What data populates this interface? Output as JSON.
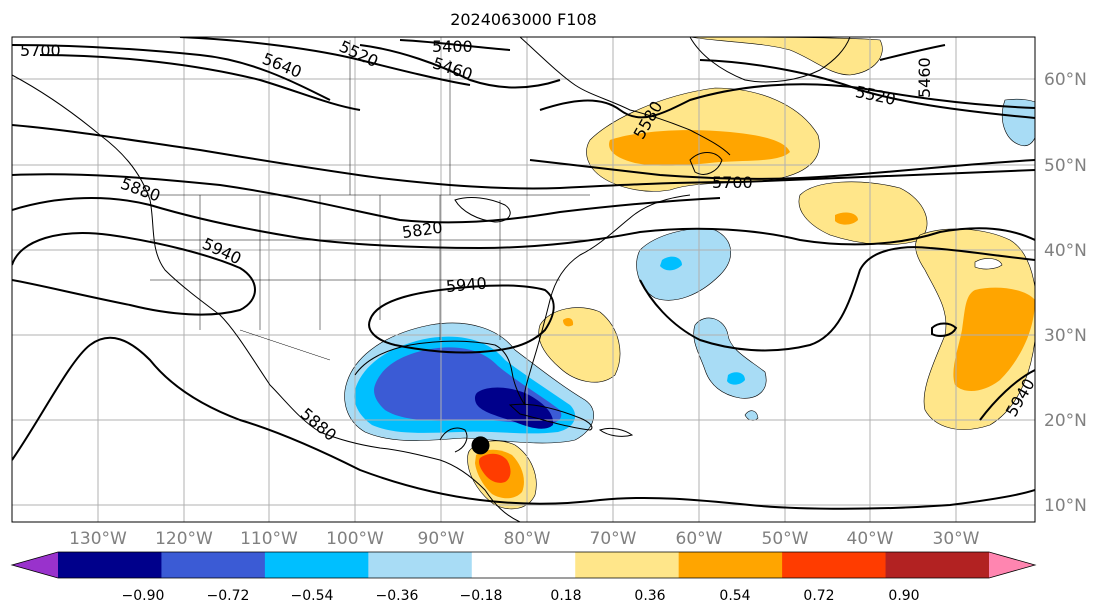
{
  "title": "2024063000 F108",
  "map": {
    "projection": "PlateCarree",
    "extent_lon": [
      -137,
      -18
    ],
    "extent_lat": [
      8,
      65
    ],
    "gridlines": true,
    "lon_ticks": [
      "130°W",
      "120°W",
      "110°W",
      "100°W",
      "90°W",
      "80°W",
      "70°W",
      "60°W",
      "50°W",
      "40°W",
      "30°W"
    ],
    "lat_ticks": [
      "10°N",
      "20°N",
      "30°N",
      "40°N",
      "50°N",
      "60°N"
    ],
    "lon_tick_values": [
      -130,
      -120,
      -110,
      -100,
      -90,
      -80,
      -70,
      -60,
      -50,
      -40,
      -30
    ],
    "lat_tick_values": [
      10,
      20,
      30,
      40,
      50,
      60
    ],
    "contour_labels": [
      "5700",
      "5640",
      "5520",
      "5400",
      "5460",
      "5580",
      "5520",
      "5460",
      "5700",
      "5880",
      "5820",
      "5940",
      "5940",
      "5880",
      "5940"
    ],
    "marker": {
      "label": "storm-center",
      "lon": -82.5,
      "lat": 17
    }
  },
  "colorbar": {
    "ticks": [
      "−0.90",
      "−0.72",
      "−0.54",
      "−0.36",
      "−0.18",
      "0.18",
      "0.36",
      "0.54",
      "0.72",
      "0.90"
    ],
    "colors": [
      "#9932cc",
      "#00008b",
      "#3b5bd5",
      "#00bfff",
      "#a8dcf5",
      "#ffffff",
      "#ffe68a",
      "#ffa500",
      "#ff3c00",
      "#b22222",
      "#ff85b0"
    ]
  },
  "legend_colors": {
    "contour": "#000000",
    "grid": "#b0b0b0",
    "coast": "#000000"
  }
}
